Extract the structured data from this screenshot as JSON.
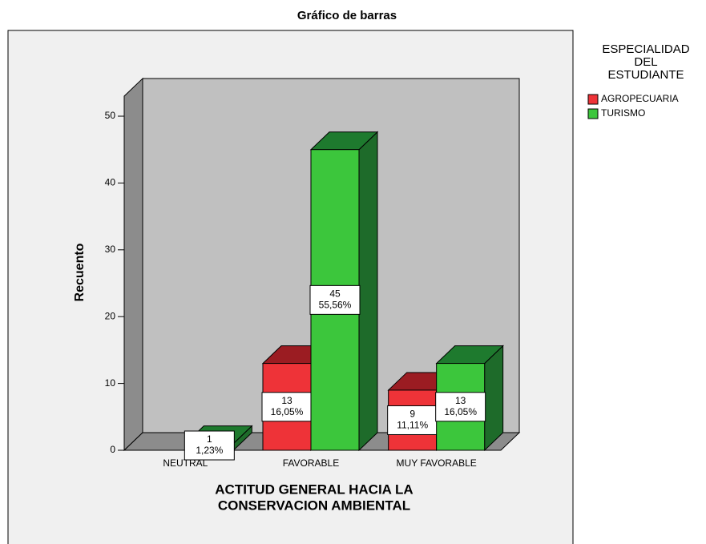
{
  "chart_data": {
    "type": "bar3d",
    "title": "Gráfico de barras",
    "y_label": "Recuento",
    "x_label_lines": [
      "ACTITUD GENERAL HACIA LA",
      "CONSERVACION AMBIENTAL"
    ],
    "legend_title_lines": [
      "ESPECIALIDAD",
      "DEL",
      "ESTUDIANTE"
    ],
    "legend": "right",
    "categories": [
      "NEUTRAL",
      "FAVORABLE",
      "MUY FAVORABLE"
    ],
    "series": [
      {
        "name": "AGROPECUARIA",
        "color": "#ee3338",
        "top_color": "#9b1c22",
        "side_color": "#b3222a",
        "values": [
          null,
          13,
          9
        ],
        "percent_labels": [
          null,
          "16,05%",
          "11,11%"
        ]
      },
      {
        "name": "TURISMO",
        "color": "#3cc63c",
        "top_color": "#1e7a2e",
        "side_color": "#1e6b2a",
        "values": [
          1,
          45,
          13
        ],
        "percent_labels": [
          "1,23%",
          "55,56%",
          "16,05%"
        ]
      }
    ],
    "ylim": [
      0,
      53
    ],
    "yticks": [
      0,
      10,
      20,
      30,
      40,
      50
    ]
  }
}
